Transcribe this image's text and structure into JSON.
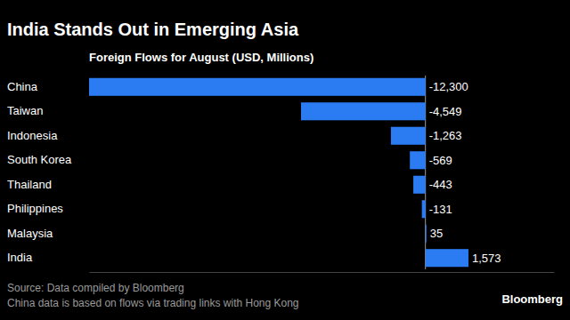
{
  "chart_data": {
    "type": "bar",
    "orientation": "horizontal",
    "title": "India Stands Out in Emerging Asia",
    "subtitle": "Foreign Flows for August (USD, Millions)",
    "categories": [
      "China",
      "Taiwan",
      "Indonesia",
      "South Korea",
      "Thailand",
      "Philippines",
      "Malaysia",
      "India"
    ],
    "values": [
      -12300,
      -4549,
      -1263,
      -569,
      -443,
      -131,
      35,
      1573
    ],
    "value_labels": [
      "-12,300",
      "-4,549",
      "-1,263",
      "-569",
      "-443",
      "-131",
      "35",
      "1,573"
    ],
    "data_labels": true,
    "color": "#2b7bf3",
    "xlim": [
      -12300,
      4700
    ],
    "xticks": [
      0
    ],
    "tick_labels": "y",
    "grid": false,
    "source": "Source: Data compiled by Bloomberg",
    "note": "China data is based on flows via trading links with Hong Kong",
    "credit": "Bloomberg"
  }
}
